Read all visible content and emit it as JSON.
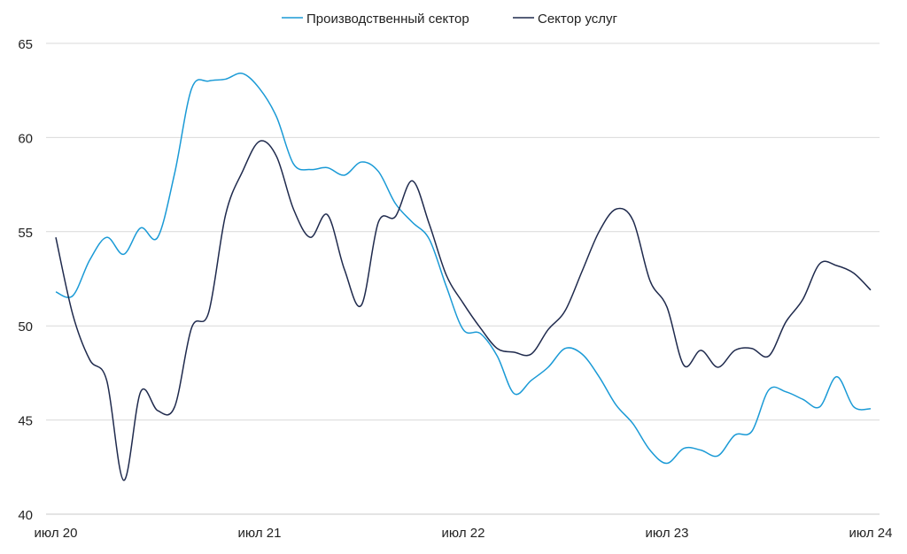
{
  "chart_data": {
    "type": "line",
    "title": "",
    "xlabel": "",
    "ylabel": "",
    "ylim": [
      40,
      65
    ],
    "yticks": [
      40,
      45,
      50,
      55,
      60,
      65
    ],
    "grid": true,
    "legend_position": "top-center",
    "x_start": "2020-07",
    "x_end": "2024-07",
    "x_ticks": [
      {
        "index": 0,
        "label": "июл 20"
      },
      {
        "index": 12,
        "label": "июл 21"
      },
      {
        "index": 24,
        "label": "июл 22"
      },
      {
        "index": 36,
        "label": "июл 23"
      },
      {
        "index": 48,
        "label": "июл 24"
      }
    ],
    "series": [
      {
        "name": "Производственный сектор",
        "color": "#1a9ad6",
        "values": [
          51.8,
          51.6,
          53.5,
          54.7,
          53.8,
          55.2,
          54.7,
          58.1,
          62.6,
          63.0,
          63.1,
          63.4,
          62.6,
          61.1,
          58.6,
          58.3,
          58.4,
          58.0,
          58.7,
          58.2,
          56.5,
          55.5,
          54.6,
          52.1,
          49.8,
          49.6,
          48.4,
          46.4,
          47.1,
          47.8,
          48.8,
          48.5,
          47.3,
          45.8,
          44.8,
          43.4,
          42.7,
          43.5,
          43.4,
          43.1,
          44.2,
          44.4,
          46.6,
          46.5,
          46.1,
          45.7,
          47.3,
          45.7,
          45.6
        ]
      },
      {
        "name": "Сектор услуг",
        "color": "#1f2a4d",
        "values": [
          54.7,
          50.6,
          48.2,
          47.1,
          41.8,
          46.5,
          45.5,
          45.7,
          49.9,
          50.7,
          55.9,
          58.2,
          59.8,
          59.0,
          56.2,
          54.7,
          55.9,
          53.0,
          51.1,
          55.5,
          55.8,
          57.7,
          55.4,
          52.7,
          51.2,
          49.9,
          48.8,
          48.6,
          48.5,
          49.8,
          50.8,
          52.9,
          55.0,
          56.2,
          55.6,
          52.4,
          51.0,
          47.9,
          48.7,
          47.8,
          48.7,
          48.8,
          48.4,
          50.2,
          51.4,
          53.3,
          53.2,
          52.8,
          51.9
        ]
      }
    ]
  }
}
